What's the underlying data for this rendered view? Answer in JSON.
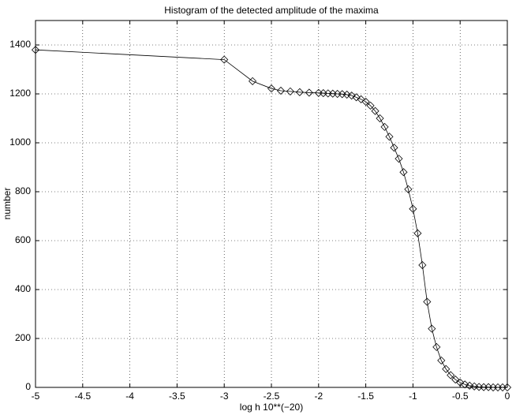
{
  "chart_data": {
    "type": "line",
    "title": "Histogram of the detected  amplitude of the maxima",
    "xlabel": "log h 10**(−20)",
    "ylabel": "number",
    "x": [
      -5,
      -3,
      -2.7,
      -2.5,
      -2.4,
      -2.3,
      -2.2,
      -2.1,
      -2.0,
      -1.95,
      -1.9,
      -1.85,
      -1.8,
      -1.75,
      -1.7,
      -1.65,
      -1.6,
      -1.55,
      -1.5,
      -1.45,
      -1.4,
      -1.35,
      -1.3,
      -1.25,
      -1.2,
      -1.15,
      -1.1,
      -1.05,
      -1.0,
      -0.95,
      -0.9,
      -0.85,
      -0.8,
      -0.75,
      -0.7,
      -0.65,
      -0.6,
      -0.55,
      -0.5,
      -0.45,
      -0.4,
      -0.35,
      -0.3,
      -0.25,
      -0.2,
      -0.15,
      -0.1,
      -0.05,
      0
    ],
    "series": [
      {
        "color": "#000000",
        "values": [
          1380,
          1340,
          1252,
          1222,
          1213,
          1210,
          1207,
          1205,
          1204,
          1203,
          1202,
          1201,
          1200,
          1199,
          1197,
          1193,
          1186,
          1178,
          1168,
          1152,
          1130,
          1100,
          1065,
          1025,
          980,
          935,
          880,
          810,
          730,
          630,
          500,
          350,
          240,
          165,
          110,
          75,
          50,
          32,
          20,
          12,
          7,
          4,
          2,
          1,
          1,
          0,
          0,
          0,
          0
        ]
      }
    ],
    "xlim": [
      -5,
      0
    ],
    "ylim": [
      0,
      1500
    ],
    "xticks": [
      -5,
      -4.5,
      -4,
      -3.5,
      -3,
      -2.5,
      -2,
      -1.5,
      -1,
      -0.5,
      0
    ],
    "yticks": [
      0,
      200,
      400,
      600,
      800,
      1000,
      1200,
      1400
    ],
    "grid": true
  }
}
